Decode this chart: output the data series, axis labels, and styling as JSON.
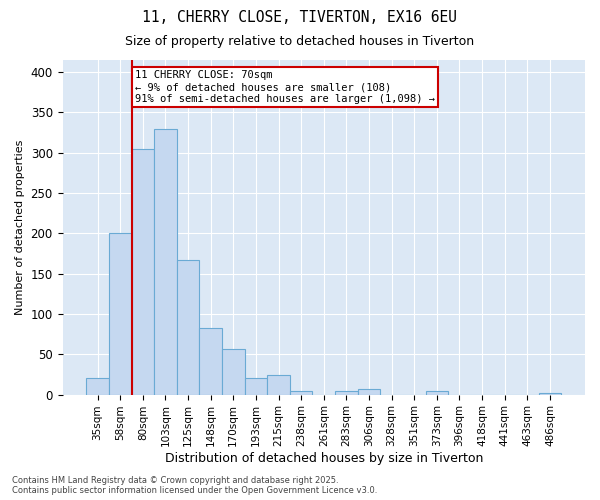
{
  "title1": "11, CHERRY CLOSE, TIVERTON, EX16 6EU",
  "title2": "Size of property relative to detached houses in Tiverton",
  "xlabel": "Distribution of detached houses by size in Tiverton",
  "ylabel": "Number of detached properties",
  "bin_labels": [
    "35sqm",
    "58sqm",
    "80sqm",
    "103sqm",
    "125sqm",
    "148sqm",
    "170sqm",
    "193sqm",
    "215sqm",
    "238sqm",
    "261sqm",
    "283sqm",
    "306sqm",
    "328sqm",
    "351sqm",
    "373sqm",
    "396sqm",
    "418sqm",
    "441sqm",
    "463sqm",
    "486sqm"
  ],
  "bar_heights": [
    20,
    200,
    305,
    330,
    167,
    83,
    57,
    20,
    24,
    5,
    0,
    5,
    7,
    0,
    0,
    4,
    0,
    0,
    0,
    0,
    2
  ],
  "bar_color": "#c5d8f0",
  "bar_edgecolor": "#6aaad4",
  "bg_color": "#dce8f5",
  "grid_color": "#ffffff",
  "vline_x_idx": 2,
  "vline_color": "#cc0000",
  "annotation_text": "11 CHERRY CLOSE: 70sqm\n← 9% of detached houses are smaller (108)\n91% of semi-detached houses are larger (1,098) →",
  "annotation_box_edgecolor": "#cc0000",
  "footnote": "Contains HM Land Registry data © Crown copyright and database right 2025.\nContains public sector information licensed under the Open Government Licence v3.0.",
  "ylim": [
    0,
    415
  ],
  "yticks": [
    0,
    50,
    100,
    150,
    200,
    250,
    300,
    350,
    400
  ],
  "fig_facecolor": "#ffffff"
}
